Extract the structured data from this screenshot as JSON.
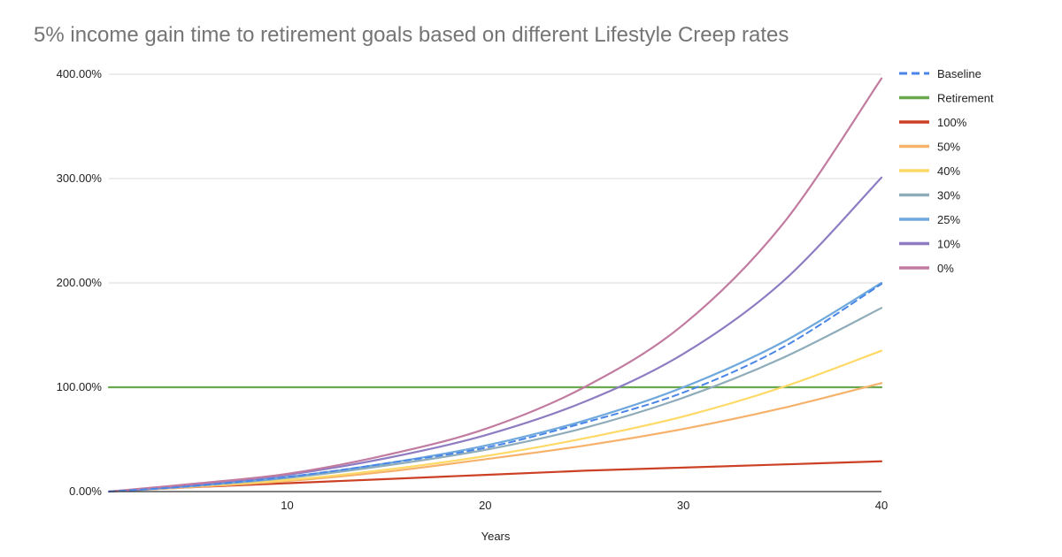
{
  "chart_data": {
    "type": "line",
    "title": "5% income gain time to retirement goals based on different Lifestyle Creep rates",
    "xlabel": "Years",
    "ylabel": "",
    "xlim": [
      1,
      40
    ],
    "ylim": [
      0,
      400
    ],
    "x_ticks": [
      10,
      20,
      30,
      40
    ],
    "x_tick_labels": [
      "10",
      "20",
      "30",
      "40"
    ],
    "y_ticks": [
      0,
      100,
      200,
      300,
      400
    ],
    "y_tick_labels": [
      "0.00%",
      "100.00%",
      "200.00%",
      "300.00%",
      "400.00%"
    ],
    "grid": true,
    "legend_position": "right",
    "x": [
      1,
      5,
      10,
      15,
      20,
      25,
      30,
      35,
      40
    ],
    "series": [
      {
        "name": "Baseline",
        "color": "#4a86e8",
        "dash": true,
        "values": [
          0,
          5,
          14,
          27,
          42,
          66,
          95,
          138,
          199
        ]
      },
      {
        "name": "Retirement",
        "color": "#6aa84f",
        "dash": false,
        "values": [
          100,
          100,
          100,
          100,
          100,
          100,
          100,
          100,
          100
        ]
      },
      {
        "name": "100%",
        "color": "#cc4125",
        "dash": false,
        "values": [
          0,
          4,
          8,
          12,
          16,
          20,
          23,
          26,
          29
        ]
      },
      {
        "name": "50%",
        "color": "#f6b26b",
        "dash": false,
        "values": [
          0,
          4,
          10,
          19,
          31,
          44,
          60,
          80,
          104
        ]
      },
      {
        "name": "40%",
        "color": "#ffd966",
        "dash": false,
        "values": [
          0,
          5,
          11,
          21,
          34,
          51,
          72,
          100,
          135
        ]
      },
      {
        "name": "30%",
        "color": "#8eacb9",
        "dash": false,
        "values": [
          0,
          5,
          13,
          25,
          40,
          61,
          90,
          128,
          176
        ]
      },
      {
        "name": "25%",
        "color": "#6fa8dc",
        "dash": false,
        "values": [
          0,
          5,
          14,
          27,
          44,
          68,
          100,
          143,
          200
        ]
      },
      {
        "name": "10%",
        "color": "#8e7cc3",
        "dash": false,
        "values": [
          0,
          6,
          16,
          32,
          54,
          86,
          132,
          201,
          301
        ]
      },
      {
        "name": "0%",
        "color": "#c27ba0",
        "dash": false,
        "values": [
          0,
          7,
          17,
          35,
          60,
          100,
          160,
          256,
          396
        ]
      }
    ]
  }
}
